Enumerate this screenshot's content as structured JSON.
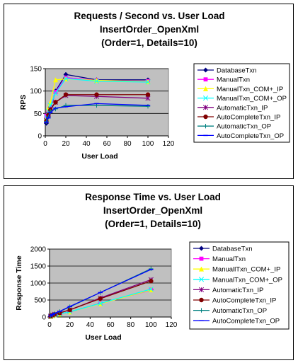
{
  "chart_data": [
    {
      "type": "line",
      "title_lines": [
        "Requests / Second  vs.  User Load",
        "InsertOrder_OpenXml",
        "(Order=1, Details=10)"
      ],
      "xlabel": "User Load",
      "ylabel": "RPS",
      "xlim": [
        0,
        120
      ],
      "ylim": [
        0,
        150
      ],
      "xticks": [
        0,
        20,
        40,
        60,
        80,
        100,
        120
      ],
      "yticks": [
        0,
        50,
        100,
        150
      ],
      "grid": true,
      "legend_position": "right",
      "x": [
        1,
        3,
        5,
        10,
        20,
        50,
        100
      ],
      "series": [
        {
          "name": "DatabaseTxn",
          "color": "#000080",
          "marker": "diamond",
          "values": [
            28,
            52,
            58,
            100,
            137,
            125,
            125
          ]
        },
        {
          "name": "ManualTxn",
          "color": "#ff00ff",
          "marker": "square",
          "values": [
            45,
            55,
            62,
            98,
            130,
            124,
            122
          ]
        },
        {
          "name": "ManualTxn_COM+_IP",
          "color": "#ffff00",
          "marker": "triangle",
          "values": [
            40,
            62,
            75,
            125,
            127,
            124,
            121
          ]
        },
        {
          "name": "ManualTxn_COM+_OP",
          "color": "#00ffff",
          "marker": "x",
          "values": [
            42,
            55,
            68,
            95,
            128,
            122,
            120
          ]
        },
        {
          "name": "AutomaticTxn_IP",
          "color": "#800080",
          "marker": "star",
          "values": [
            35,
            48,
            60,
            75,
            90,
            88,
            84
          ]
        },
        {
          "name": "AutoCompleteTxn_IP",
          "color": "#800000",
          "marker": "circle",
          "values": [
            33,
            47,
            58,
            75,
            92,
            92,
            92
          ]
        },
        {
          "name": "AutomaticTxn_OP",
          "color": "#008080",
          "marker": "plus",
          "values": [
            32,
            42,
            55,
            60,
            68,
            68,
            66
          ]
        },
        {
          "name": "AutoCompleteTxn_OP",
          "color": "#0000ff",
          "marker": "dash",
          "values": [
            30,
            40,
            52,
            62,
            65,
            72,
            68
          ]
        }
      ]
    },
    {
      "type": "line",
      "title_lines": [
        "Response Time  vs.  User Load",
        "InsertOrder_OpenXml",
        "(Order=1, Details=10)"
      ],
      "xlabel": "User Load",
      "ylabel": "Response Time",
      "xlim": [
        0,
        120
      ],
      "ylim": [
        0,
        2000
      ],
      "xticks": [
        0,
        20,
        40,
        60,
        80,
        100,
        120
      ],
      "yticks": [
        0,
        500,
        1000,
        1500,
        2000
      ],
      "grid": true,
      "legend_position": "right",
      "x": [
        1,
        3,
        5,
        10,
        20,
        50,
        100
      ],
      "series": [
        {
          "name": "DatabaseTxn",
          "color": "#000080",
          "marker": "diamond",
          "values": [
            20,
            40,
            70,
            90,
            150,
            400,
            800
          ]
        },
        {
          "name": "ManualTxn",
          "color": "#ff00ff",
          "marker": "square",
          "values": [
            20,
            40,
            60,
            90,
            150,
            400,
            790
          ]
        },
        {
          "name": "ManuallTxn_COM+_IP",
          "color": "#ffff00",
          "marker": "triangle",
          "values": [
            20,
            40,
            60,
            85,
            150,
            390,
            800
          ]
        },
        {
          "name": "ManualTxn_COM+_OP",
          "color": "#00ffff",
          "marker": "x",
          "values": [
            20,
            40,
            60,
            90,
            155,
            400,
            820
          ]
        },
        {
          "name": "AutomaticTxn_IP",
          "color": "#800080",
          "marker": "star",
          "values": [
            25,
            55,
            80,
            120,
            210,
            560,
            1100
          ]
        },
        {
          "name": "AutoCompleteTxn_IP",
          "color": "#800000",
          "marker": "circle",
          "values": [
            25,
            55,
            80,
            120,
            210,
            540,
            1060
          ]
        },
        {
          "name": "AutomaticTxn_OP",
          "color": "#008080",
          "marker": "plus",
          "values": [
            30,
            60,
            100,
            160,
            300,
            720,
            1420
          ]
        },
        {
          "name": "AutoCompleteTxn_OP",
          "color": "#0000ff",
          "marker": "dash",
          "values": [
            30,
            70,
            110,
            165,
            310,
            720,
            1400
          ]
        }
      ]
    }
  ]
}
